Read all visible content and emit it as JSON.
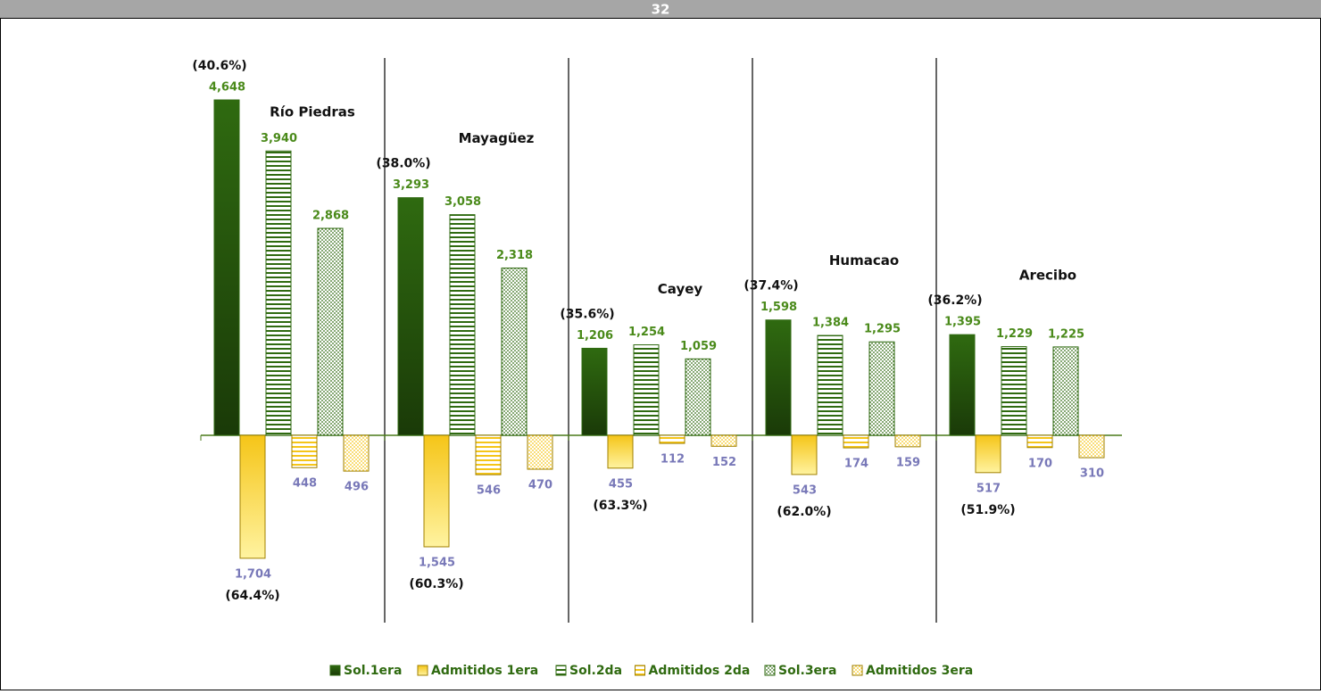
{
  "header": {
    "title": "32"
  },
  "chart_data": {
    "type": "bar",
    "categories": [
      "Río Piedras",
      "Mayagüez",
      "Cayey",
      "Humacao",
      "Arecibo"
    ],
    "series": [
      {
        "name": "Sol.1era",
        "color": "#2f6a10",
        "pattern": "solid",
        "direction": "up",
        "values": [
          4648,
          3293,
          1206,
          1598,
          1395
        ],
        "value_labels": [
          "4,648",
          "3,293",
          "1,206",
          "1,598",
          "1,395"
        ]
      },
      {
        "name": "Admitidos 1era",
        "color": "#f5c518",
        "pattern": "solid",
        "direction": "down",
        "values": [
          1704,
          1545,
          455,
          543,
          517
        ],
        "value_labels": [
          "1,704",
          "1,545",
          "455",
          "543",
          "517"
        ]
      },
      {
        "name": "Sol.2da",
        "color": "#2f6a10",
        "pattern": "stripes",
        "direction": "up",
        "values": [
          3940,
          3058,
          1254,
          1384,
          1229
        ],
        "value_labels": [
          "3,940",
          "3,058",
          "1,254",
          "1,384",
          "1,229"
        ]
      },
      {
        "name": "Admitidos 2da",
        "color": "#f5c518",
        "pattern": "stripes",
        "direction": "down",
        "values": [
          448,
          546,
          112,
          174,
          170
        ]
      },
      {
        "name": "Sol.3era",
        "color": "#2f6a10",
        "pattern": "dots",
        "direction": "up",
        "values": [
          2868,
          2318,
          1059,
          1295,
          1225
        ],
        "value_labels": [
          "2,868",
          "2,318",
          "1,059",
          "1,295",
          "1,225"
        ]
      },
      {
        "name": "Admitidos 3era",
        "color": "#f5c518",
        "pattern": "dots",
        "direction": "down",
        "values": [
          496,
          470,
          152,
          159,
          310
        ]
      }
    ],
    "annotations_up": [
      "(40.6%)",
      "(38.0%)",
      "(35.6%)",
      "(37.4%)",
      "(36.2%)"
    ],
    "annotations_down": [
      "(64.4%)",
      "(60.3%)",
      "(63.3%)",
      "(62.0%)",
      "(51.9%)"
    ]
  }
}
